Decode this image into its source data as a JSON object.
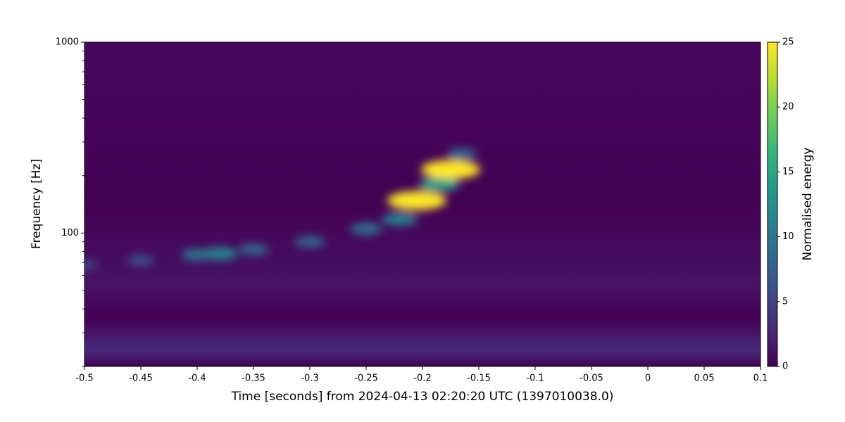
{
  "chart_data": {
    "type": "spectrogram",
    "xlabel": "Time [seconds] from 2024-04-13 02:20:20 UTC (1397010038.0)",
    "ylabel": "Frequency [Hz]",
    "colorbar_label": "Normalised energy",
    "xlim": [
      -0.5,
      0.1
    ],
    "xticks": [
      -0.5,
      -0.45,
      -0.4,
      -0.35,
      -0.3,
      -0.25,
      -0.2,
      -0.15,
      -0.1,
      -0.05,
      0,
      0.05,
      0.1
    ],
    "ylim": [
      20,
      1000
    ],
    "yscale": "log",
    "yticks": [
      100,
      1000
    ],
    "yminorticks": [
      20,
      30,
      40,
      50,
      60,
      70,
      80,
      90,
      200,
      300,
      400,
      500,
      600,
      700,
      800,
      900
    ],
    "clim": [
      0,
      25
    ],
    "cticks": [
      0,
      5,
      10,
      15,
      20,
      25
    ],
    "colormap": [
      "#440154",
      "#482878",
      "#3e4989",
      "#31688e",
      "#26828e",
      "#1f9e89",
      "#35b779",
      "#6ece58",
      "#b5de2b",
      "#fde725"
    ],
    "track": {
      "x": [
        -0.5,
        -0.45,
        -0.4,
        -0.38,
        -0.35,
        -0.3,
        -0.25,
        -0.22,
        -0.205,
        -0.185,
        -0.175,
        -0.165
      ],
      "y": [
        68,
        72,
        77,
        78,
        82,
        90,
        105,
        118,
        148,
        180,
        215,
        260
      ],
      "energy": [
        5,
        6,
        9,
        11,
        8,
        8,
        9,
        11,
        25,
        14,
        25,
        8
      ]
    }
  }
}
